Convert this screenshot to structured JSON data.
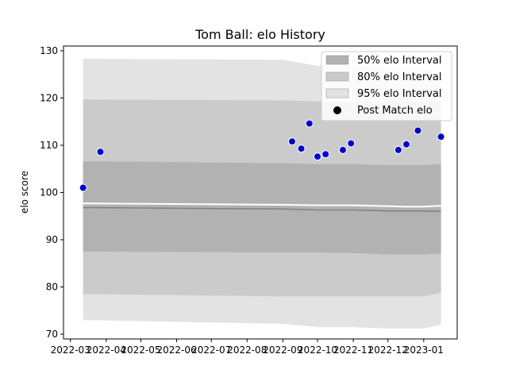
{
  "chart_data": {
    "type": "scatter",
    "title": "Tom Ball: elo History",
    "xlabel": "",
    "ylabel": "elo score",
    "xlim": [
      "2022-02-23",
      "2023-01-30"
    ],
    "ylim": [
      69,
      131
    ],
    "x_ticks": [
      "2022-03",
      "2022-04",
      "2022-05",
      "2022-06",
      "2022-07",
      "2022-08",
      "2022-09",
      "2022-10",
      "2022-11",
      "2022-12",
      "2023-01"
    ],
    "y_ticks": [
      70,
      80,
      90,
      100,
      110,
      120,
      130
    ],
    "grid": false,
    "legend_position": "top-right",
    "legend": [
      {
        "label": "50% elo Interval",
        "color": "#b2b2b2"
      },
      {
        "label": "80% elo Interval",
        "color": "#cbcbcb"
      },
      {
        "label": "95% elo Interval",
        "color": "#e3e3e3"
      },
      {
        "label": "Post Match elo",
        "color": "#000000"
      }
    ],
    "bands": {
      "x": [
        "2022-03-12",
        "2022-09-01",
        "2022-10-01",
        "2022-11-01",
        "2022-12-01",
        "2022-12-15",
        "2023-01-01",
        "2023-01-16"
      ],
      "ci95": {
        "lower": [
          73.0,
          72.2,
          71.5,
          71.5,
          71.2,
          71.2,
          71.2,
          72.0
        ],
        "upper": [
          128.3,
          128.1,
          126.8,
          126.8,
          126.5,
          126.3,
          126.0,
          125.5
        ]
      },
      "ci80": {
        "lower": [
          78.5,
          78.0,
          78.0,
          78.0,
          78.0,
          78.0,
          78.0,
          78.8
        ],
        "upper": [
          119.7,
          119.5,
          119.3,
          119.3,
          119.3,
          119.3,
          119.3,
          119.3
        ]
      },
      "ci50": {
        "lower": [
          87.5,
          87.3,
          87.3,
          87.2,
          86.9,
          86.9,
          86.9,
          87.1
        ],
        "upper": [
          106.6,
          106.2,
          106.0,
          106.0,
          105.8,
          105.8,
          105.8,
          106.0
        ]
      },
      "mean": [
        96.8,
        96.5,
        96.3,
        96.3,
        96.1,
        96.1,
        96.1,
        96.0
      ],
      "median": [
        97.7,
        97.4,
        97.3,
        97.3,
        97.1,
        97.0,
        97.0,
        97.2
      ]
    },
    "points": {
      "name": "Post Match elo",
      "color": "#0000cc",
      "x": [
        "2022-03-12",
        "2022-03-27",
        "2022-09-09",
        "2022-09-17",
        "2022-09-24",
        "2022-10-01",
        "2022-10-08",
        "2022-10-23",
        "2022-10-30",
        "2022-12-10",
        "2022-12-17",
        "2022-12-27",
        "2023-01-16"
      ],
      "y": [
        101.0,
        108.6,
        110.8,
        109.3,
        114.6,
        107.6,
        108.1,
        109.0,
        110.4,
        109.0,
        110.2,
        113.1,
        111.8
      ]
    }
  }
}
